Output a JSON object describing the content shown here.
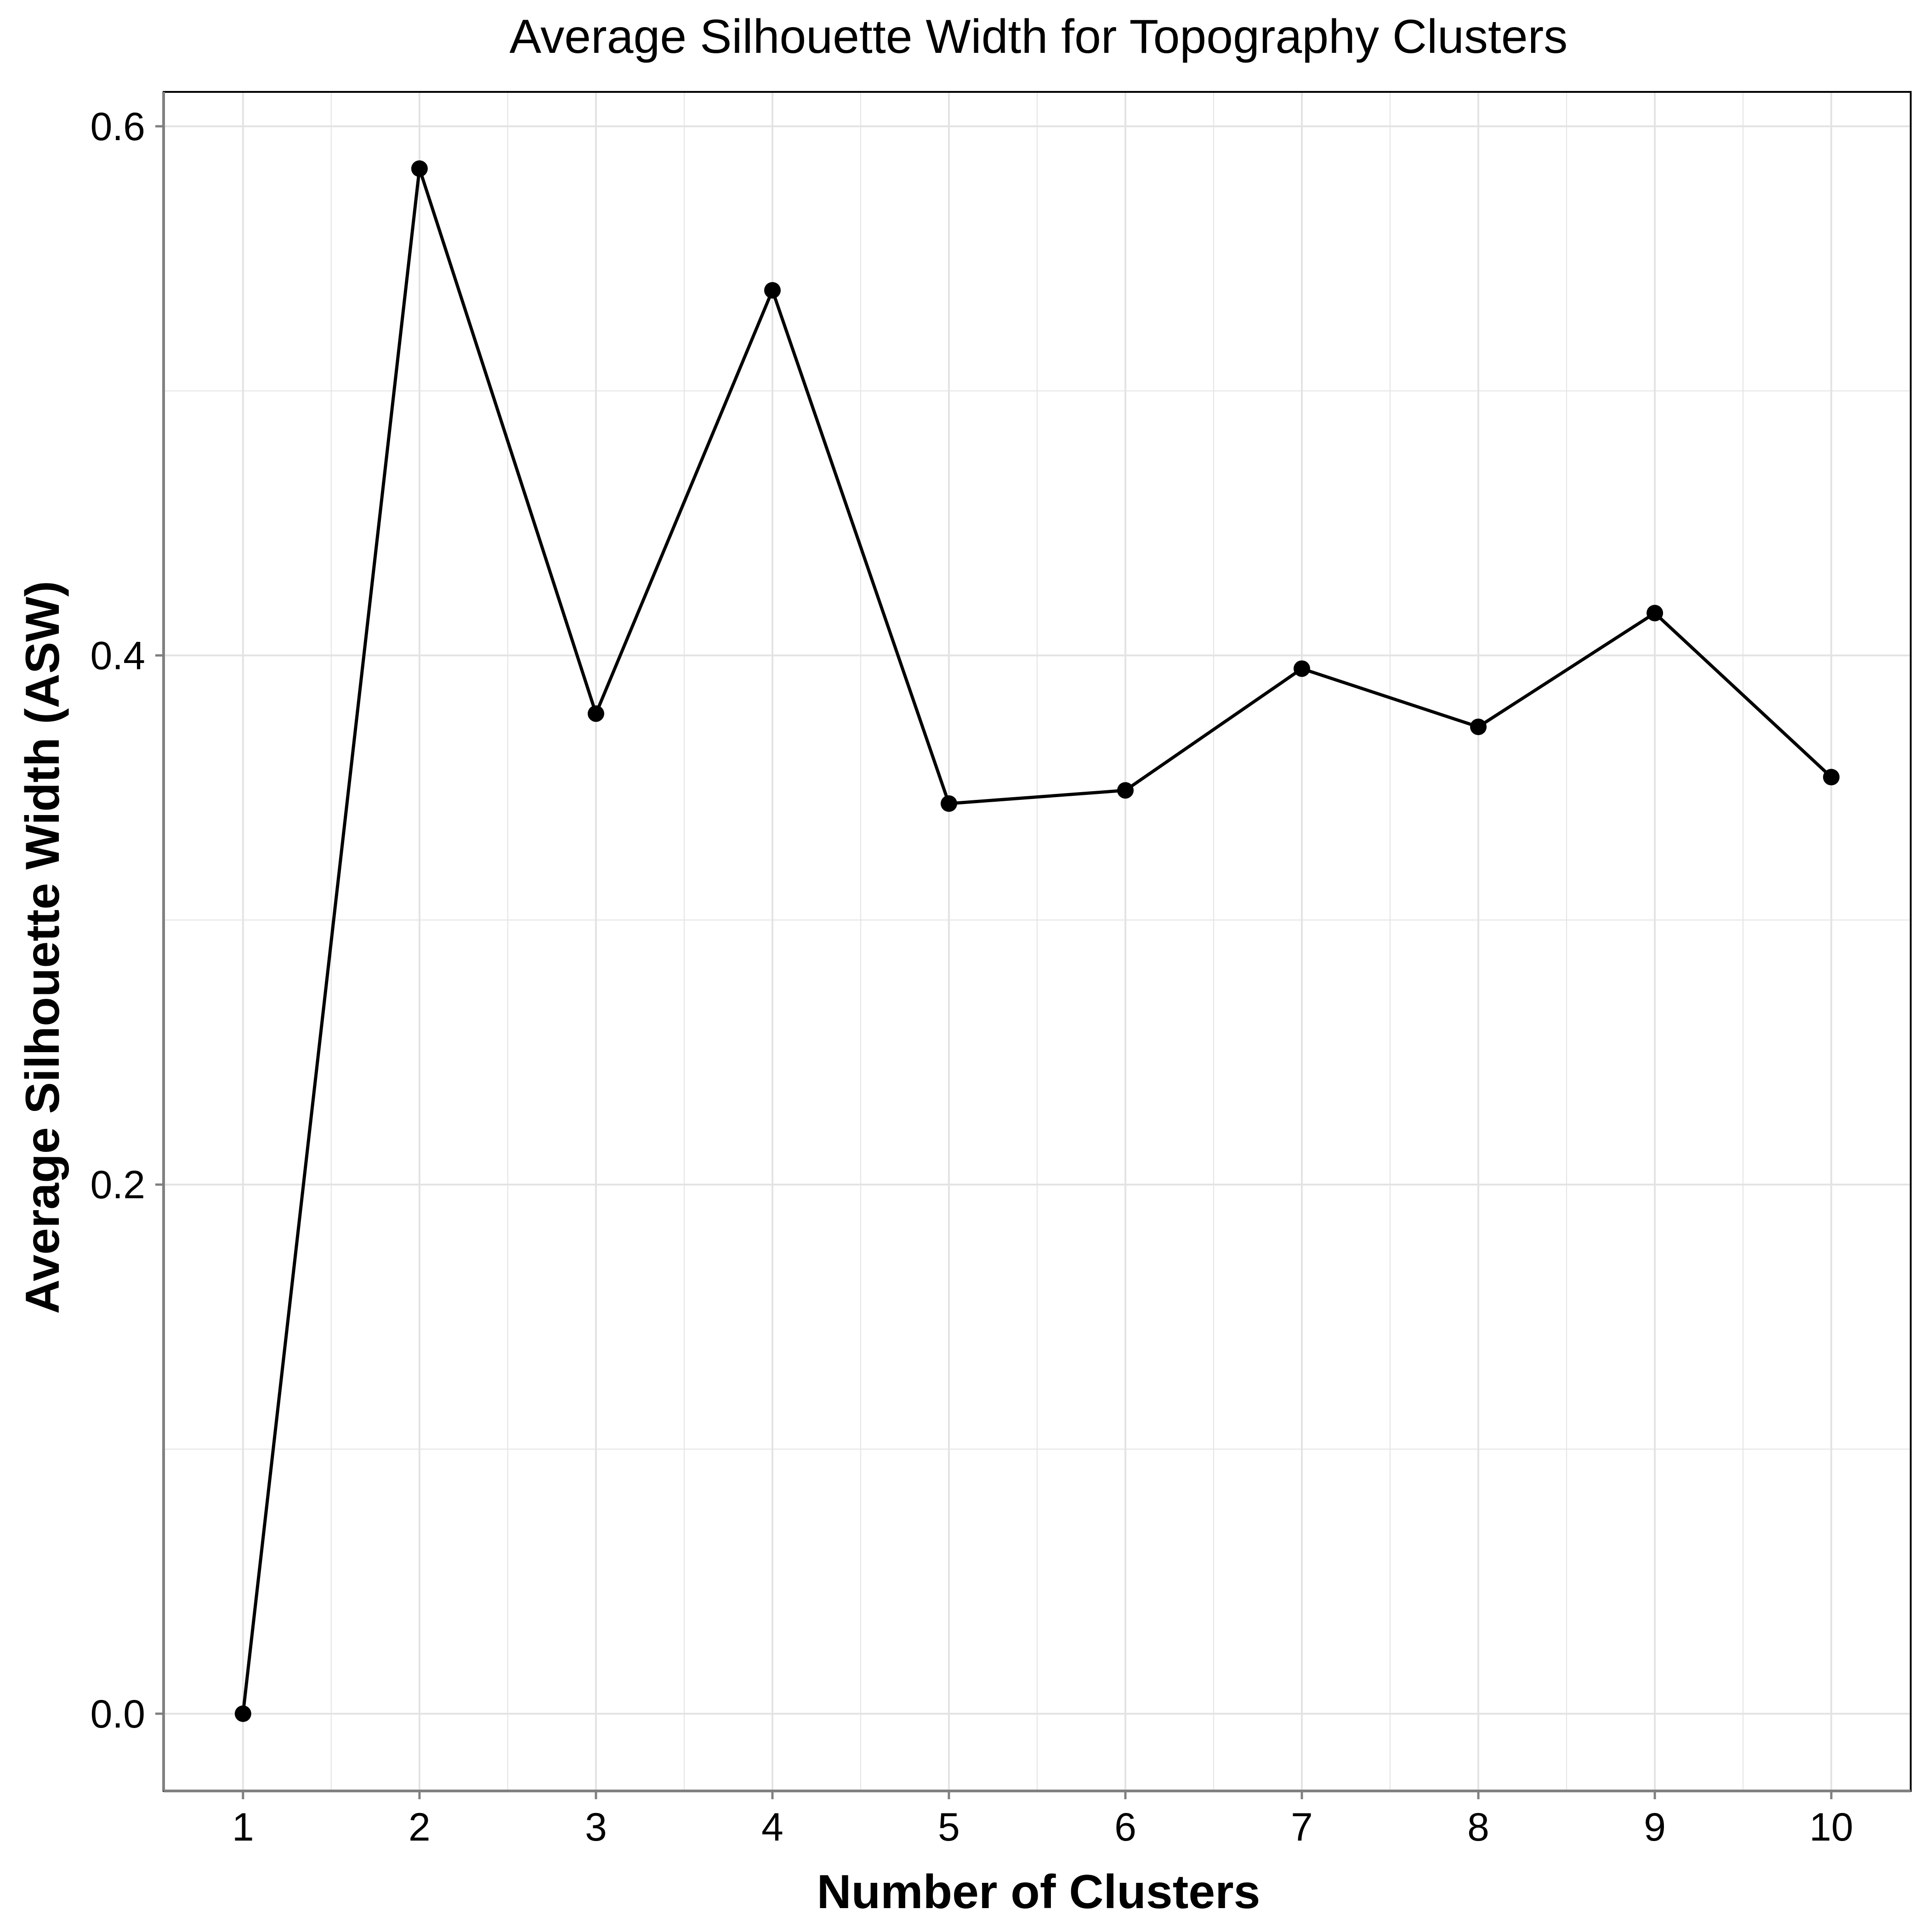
{
  "chart_data": {
    "type": "line",
    "title": "Average Silhouette Width for Topography Clusters",
    "xlabel": "Number of Clusters",
    "ylabel": "Average Silhouette Width (ASW)",
    "x": [
      1,
      2,
      3,
      4,
      5,
      6,
      7,
      8,
      9,
      10
    ],
    "series": [
      {
        "values": [
          0.0,
          0.584,
          0.378,
          0.538,
          0.344,
          0.349,
          0.395,
          0.373,
          0.416,
          0.354
        ]
      }
    ],
    "xlim": [
      0.55,
      10.45
    ],
    "ylim": [
      -0.0292,
      0.613
    ],
    "x_ticks": [
      1,
      2,
      3,
      4,
      5,
      6,
      7,
      8,
      9,
      10
    ],
    "x_tick_labels": [
      "1",
      "2",
      "3",
      "4",
      "5",
      "6",
      "7",
      "8",
      "9",
      "10"
    ],
    "y_ticks": [
      0.0,
      0.2,
      0.4,
      0.6
    ],
    "y_tick_labels": [
      "0.0",
      "0.2",
      "0.4",
      "0.6"
    ],
    "y_minor_ticks": [
      0.1,
      0.3,
      0.5
    ],
    "x_minor_ticks": [
      1.5,
      2.5,
      3.5,
      4.5,
      5.5,
      6.5,
      7.5,
      8.5,
      9.5
    ],
    "grid": true,
    "line_color": "#000000",
    "marker_color": "#000000",
    "grid_color": "#e3e3e3",
    "axis_color": "#808080"
  }
}
